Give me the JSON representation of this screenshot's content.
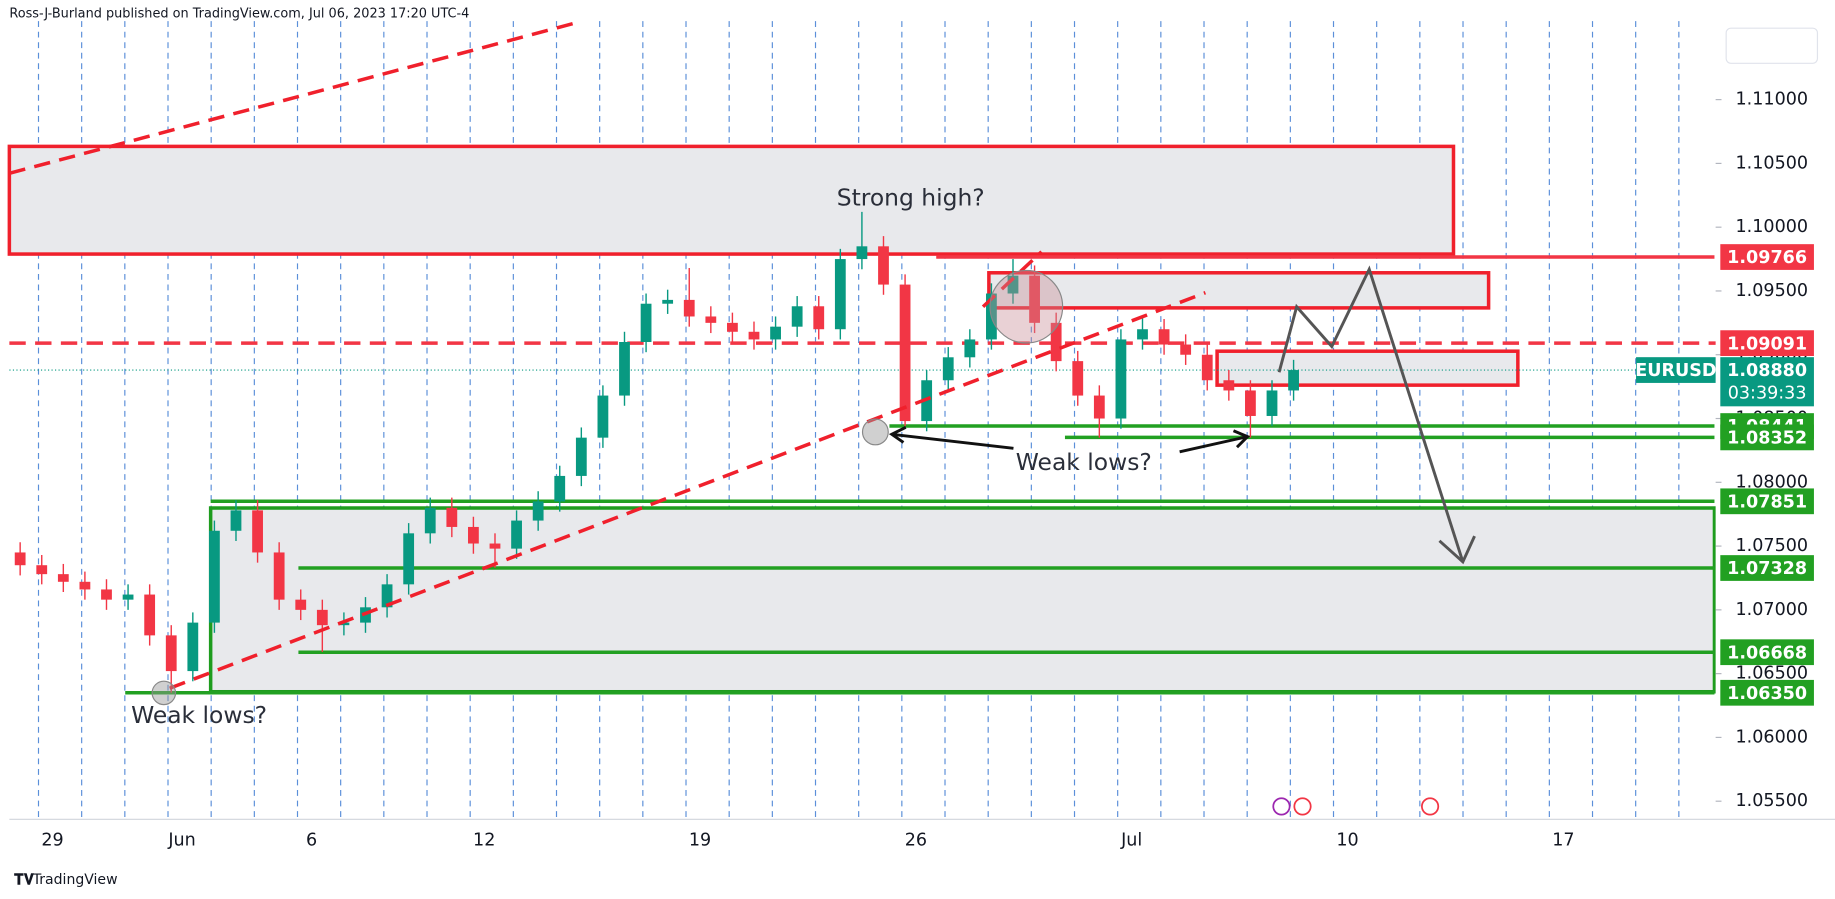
{
  "header": "Ross-J-Burland published on TradingView.com, Jul 06, 2023 17:20 UTC-4",
  "footer": "TradingView",
  "chart_data": {
    "type": "candlestick",
    "categories": [
      null,
      null,
      "29",
      null,
      null,
      null,
      null,
      null,
      "Jun",
      null,
      null,
      null,
      null,
      null,
      "6",
      null,
      null,
      null,
      null,
      null,
      null,
      null,
      "12",
      null,
      null,
      null,
      null,
      null,
      null,
      null,
      null,
      null,
      "19",
      null,
      null,
      null,
      null,
      null,
      null,
      null,
      null,
      null,
      "26",
      null,
      null,
      null,
      null,
      null,
      null,
      null,
      null,
      null,
      "Jul",
      null,
      null,
      null,
      null,
      null,
      null,
      null,
      null,
      null,
      "10",
      null,
      null,
      null,
      null,
      null,
      null,
      null,
      null,
      null,
      "17",
      null,
      null,
      null,
      null,
      null,
      null
    ],
    "open": [
      1.0745,
      1.0735,
      1.0728,
      1.0722,
      1.0716,
      1.0708,
      1.0712,
      1.068,
      1.0652,
      1.069,
      1.0762,
      1.0778,
      1.0745,
      1.0708,
      1.07,
      1.0688,
      1.069,
      1.0702,
      1.072,
      1.076,
      1.078,
      1.0765,
      1.0752,
      1.0748,
      1.077,
      1.0785,
      1.0805,
      1.0835,
      1.0868,
      1.091,
      1.094,
      1.0943,
      1.093,
      1.0925,
      1.0918,
      1.0912,
      1.0922,
      1.0938,
      1.092,
      1.0975,
      1.0985,
      1.0955,
      1.0848,
      1.088,
      1.0898,
      1.0912,
      1.0948,
      1.0962,
      1.0925,
      1.0895,
      1.0868,
      1.085,
      1.0912,
      1.092,
      1.0908,
      1.09,
      1.088,
      1.0872,
      1.0852,
      1.0872,
      null,
      null,
      null,
      null,
      null,
      null,
      null,
      null,
      null,
      null,
      null,
      null,
      null,
      null,
      null,
      null,
      null,
      null,
      null
    ],
    "high": [
      1.0753,
      1.0743,
      1.0736,
      1.073,
      1.0724,
      1.072,
      1.072,
      1.0688,
      1.0698,
      1.077,
      1.0786,
      1.0786,
      1.0753,
      1.0716,
      1.0708,
      1.0698,
      1.071,
      1.0728,
      1.0768,
      1.0788,
      1.0788,
      1.0773,
      1.076,
      1.0778,
      1.0793,
      1.0813,
      1.0843,
      1.0876,
      1.0918,
      1.0948,
      1.0951,
      1.0968,
      1.0938,
      1.0933,
      1.0926,
      1.093,
      1.0946,
      1.0946,
      1.0983,
      1.1012,
      1.0993,
      1.0963,
      1.0888,
      1.0906,
      1.092,
      1.0956,
      1.0975,
      1.097,
      1.0933,
      1.0903,
      1.0876,
      1.092,
      1.093,
      1.0928,
      1.0916,
      1.0908,
      1.0888,
      1.088,
      1.088,
      1.0896,
      null,
      null,
      null,
      null,
      null,
      null,
      null,
      null,
      null,
      null,
      null,
      null,
      null,
      null,
      null,
      null,
      null,
      null,
      null
    ],
    "low": [
      1.0727,
      1.072,
      1.0714,
      1.0708,
      1.07,
      1.07,
      1.0672,
      1.0635,
      1.0644,
      1.0682,
      1.0754,
      1.0737,
      1.07,
      1.0692,
      1.0667,
      1.068,
      1.0682,
      1.0694,
      1.0712,
      1.0752,
      1.0757,
      1.0744,
      1.0733,
      1.074,
      1.0762,
      1.0777,
      1.0797,
      1.0827,
      1.086,
      1.0902,
      1.0932,
      1.0922,
      1.0917,
      1.091,
      1.0904,
      1.0904,
      1.0914,
      1.0912,
      1.0912,
      1.0967,
      1.0947,
      1.0844,
      1.084,
      1.0872,
      1.089,
      1.0904,
      1.094,
      1.0917,
      1.0887,
      1.086,
      1.0835,
      1.0842,
      1.0904,
      1.09,
      1.0892,
      1.0872,
      1.0864,
      1.0835,
      1.0844,
      1.0864,
      null,
      null,
      null,
      null,
      null,
      null,
      null,
      null,
      null,
      null,
      null,
      null,
      null,
      null,
      null,
      null,
      null,
      null,
      null
    ],
    "close": [
      1.0735,
      1.0728,
      1.0722,
      1.0716,
      1.0708,
      1.0712,
      1.068,
      1.0652,
      1.069,
      1.0762,
      1.0778,
      1.0745,
      1.0708,
      1.07,
      1.0688,
      1.069,
      1.0702,
      1.072,
      1.076,
      1.078,
      1.0765,
      1.0752,
      1.0748,
      1.077,
      1.0785,
      1.0805,
      1.0835,
      1.0868,
      1.091,
      1.094,
      1.0943,
      1.093,
      1.0925,
      1.0918,
      1.0912,
      1.0922,
      1.0938,
      1.092,
      1.0975,
      1.0985,
      1.0955,
      1.0848,
      1.088,
      1.0898,
      1.0912,
      1.0948,
      1.0962,
      1.0925,
      1.0895,
      1.0868,
      1.085,
      1.0912,
      1.092,
      1.0908,
      1.09,
      1.088,
      1.0872,
      1.0852,
      1.0872,
      1.0888,
      null,
      null,
      null,
      null,
      null,
      null,
      null,
      null,
      null,
      null,
      null,
      null,
      null,
      null,
      null,
      null,
      null,
      null,
      null
    ],
    "up_color": "#089981",
    "down_color": "#f23645",
    "ylim": [
      1.05358,
      1.11615
    ],
    "yticks": [
      {
        "value": 1.055,
        "label": "1.05500"
      },
      {
        "value": 1.06,
        "label": "1.06000"
      },
      {
        "value": 1.065,
        "label": "1.06500"
      },
      {
        "value": 1.07,
        "label": "1.07000"
      },
      {
        "value": 1.075,
        "label": "1.07500"
      },
      {
        "value": 1.08,
        "label": "1.08000"
      },
      {
        "value": 1.085,
        "label": "1.08500"
      },
      {
        "value": 1.09,
        "label": "1.09000"
      },
      {
        "value": 1.095,
        "label": "1.09500"
      },
      {
        "value": 1.1,
        "label": "1.10000"
      },
      {
        "value": 1.105,
        "label": "1.10500"
      },
      {
        "value": 1.11,
        "label": "1.11000"
      }
    ],
    "symbol": "EURUSD",
    "last_price": {
      "value": 1.0888,
      "label": "1.08880"
    },
    "countdown": "03:39:33",
    "price_levels": [
      {
        "value": 1.09766,
        "label": "1.09766",
        "color": "#f23645",
        "line_style": "solid"
      },
      {
        "value": 1.09091,
        "label": "1.09091",
        "color": "#f23645",
        "line_style": "dashed"
      },
      {
        "value": 1.08441,
        "label": "1.08441",
        "color": "#22a022",
        "line_style": "solid"
      },
      {
        "value": 1.08352,
        "label": "1.08352",
        "color": "#22a022",
        "line_style": "solid"
      },
      {
        "value": 1.07851,
        "label": "1.07851",
        "color": "#22a022",
        "line_style": "solid"
      },
      {
        "value": 1.07328,
        "label": "1.07328",
        "color": "#22a022",
        "line_style": "solid"
      },
      {
        "value": 1.06668,
        "label": "1.06668",
        "color": "#22a022",
        "line_style": "solid"
      },
      {
        "value": 1.0635,
        "label": "1.06350",
        "color": "#22a022",
        "line_style": "solid"
      }
    ],
    "annotations": [
      "Strong high?",
      "Weak lows?",
      "Weak lows?"
    ]
  }
}
